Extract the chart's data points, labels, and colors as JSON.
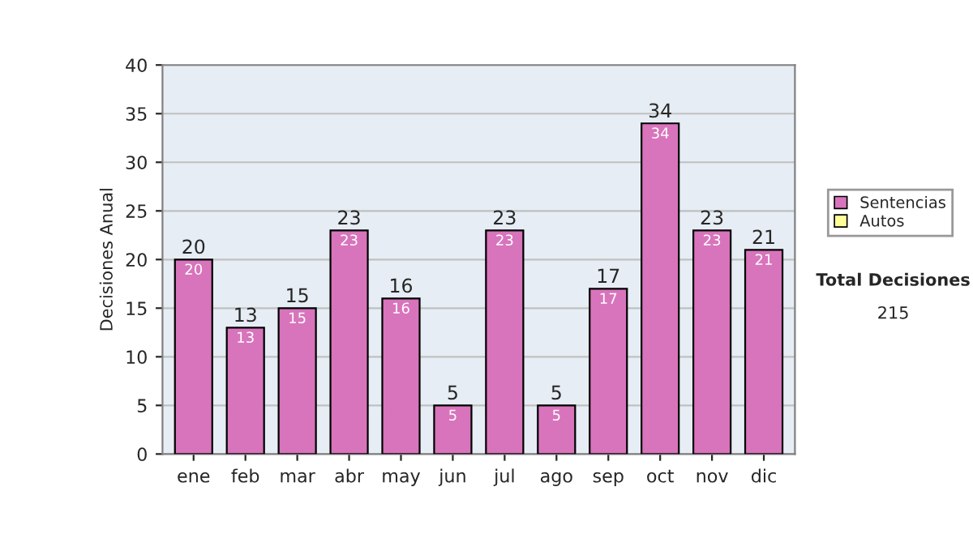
{
  "chart_data": {
    "type": "bar",
    "stacked": true,
    "ylabel": "Decisiones Anual",
    "categories": [
      "ene",
      "feb",
      "mar",
      "abr",
      "may",
      "jun",
      "jul",
      "ago",
      "sep",
      "oct",
      "nov",
      "dic"
    ],
    "series": [
      {
        "name": "Sentencias",
        "color": "#d874bc",
        "values": [
          20,
          13,
          15,
          23,
          16,
          5,
          23,
          5,
          17,
          34,
          23,
          21
        ],
        "value_labels": [
          "20",
          "13",
          "15",
          "23",
          "16",
          "5",
          "23",
          "5",
          "17",
          "34",
          "23",
          "21"
        ]
      },
      {
        "name": "Autos",
        "color": "#ffff99",
        "values": [
          null,
          null,
          null,
          null,
          null,
          null,
          null,
          null,
          null,
          null,
          null,
          null
        ]
      }
    ],
    "totals": [
      "20",
      "13",
      "15",
      "23",
      "16",
      "5",
      "23",
      "5",
      "17",
      "34",
      "23",
      "21"
    ],
    "ylim": [
      0,
      40
    ],
    "yticks": [
      0,
      5,
      10,
      15,
      20,
      25,
      30,
      35,
      40
    ],
    "grid": "y",
    "legend": "right",
    "annotations": [
      "Total Decisiones",
      "215"
    ]
  }
}
